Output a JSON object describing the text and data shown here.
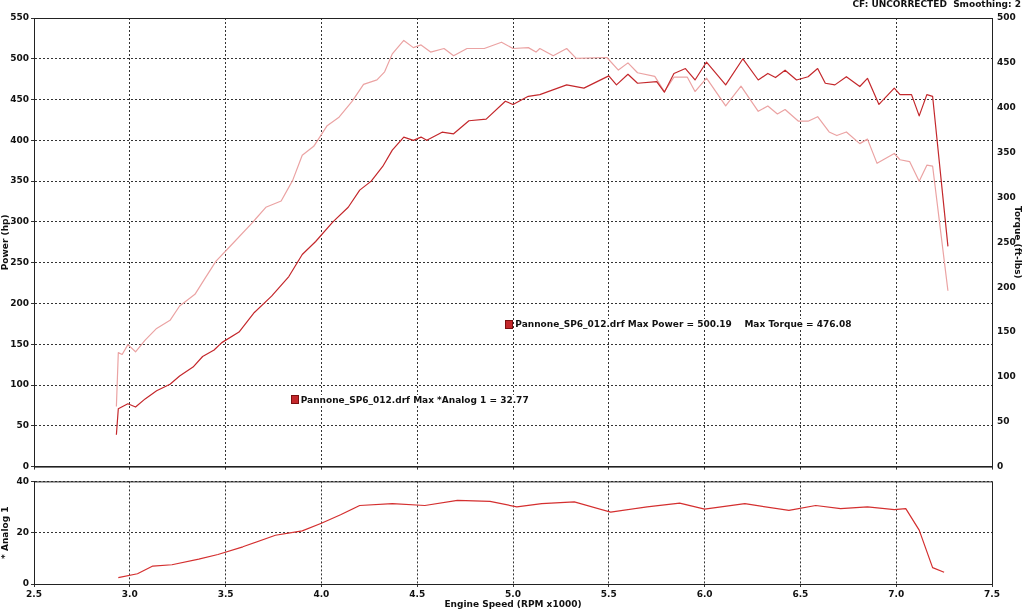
{
  "chart_data": [
    {
      "type": "line",
      "ylabel": "Power (hp)",
      "y2label": "Torque (ft-lbs)",
      "annotations": [
        "CF: UNCORRECTED  Smoothing: 2",
        "Pannone_SP6_012.drf Max Power = 500.19    Max Torque = 476.08",
        "Pannone_SP6_012.drf Max *Analog 1 = 32.77"
      ],
      "series": [
        {
          "color": "#c4282c",
          "x": [
            2.93,
            2.94,
            2.99,
            3.03,
            3.08,
            3.14,
            3.21,
            3.26,
            3.33,
            3.38,
            3.44,
            3.48,
            3.57,
            3.65,
            3.74,
            3.83,
            3.9,
            3.97,
            4.06,
            4.14,
            4.2,
            4.26,
            4.32,
            4.37,
            4.43,
            4.48,
            4.52,
            4.55,
            4.63,
            4.69,
            4.77,
            4.86,
            4.96,
            5.0,
            5.08,
            5.14,
            5.28,
            5.37,
            5.5,
            5.54,
            5.6,
            5.65,
            5.75,
            5.79,
            5.84,
            5.9,
            5.95,
            6.01,
            6.11,
            6.2,
            6.28,
            6.33,
            6.37,
            6.42,
            6.48,
            6.54,
            6.59,
            6.63,
            6.68,
            6.74,
            6.81,
            6.85,
            6.91,
            6.99,
            7.02,
            7.08,
            7.12,
            7.16,
            7.19,
            7.27
          ],
          "values": [
            39,
            71,
            77,
            73,
            83,
            93,
            101,
            111,
            122,
            135,
            143,
            152,
            165,
            189,
            209,
            233,
            260,
            276,
            300,
            318,
            339,
            350,
            368,
            388,
            404,
            400,
            404,
            400,
            410,
            408,
            424,
            426,
            448,
            444,
            454,
            456,
            468,
            464,
            479,
            468,
            481,
            470,
            472,
            459,
            482,
            488,
            474,
            496,
            468,
            500,
            474,
            482,
            477,
            486,
            474,
            478,
            488,
            470,
            468,
            478,
            466,
            476,
            444,
            464,
            456,
            456,
            430,
            456,
            454,
            270
          ]
        },
        {
          "color": "#eba3a3",
          "axis": "y2",
          "x": [
            2.93,
            2.94,
            2.96,
            2.99,
            3.03,
            3.08,
            3.14,
            3.21,
            3.26,
            3.34,
            3.39,
            3.45,
            3.53,
            3.64,
            3.71,
            3.79,
            3.85,
            3.9,
            3.96,
            4.03,
            4.09,
            4.16,
            4.22,
            4.29,
            4.33,
            4.37,
            4.43,
            4.48,
            4.52,
            4.57,
            4.64,
            4.69,
            4.76,
            4.85,
            4.94,
            5.0,
            5.08,
            5.12,
            5.14,
            5.21,
            5.28,
            5.33,
            5.49,
            5.55,
            5.6,
            5.65,
            5.74,
            5.79,
            5.84,
            5.91,
            5.95,
            6.01,
            6.11,
            6.19,
            6.28,
            6.33,
            6.38,
            6.42,
            6.49,
            6.54,
            6.59,
            6.65,
            6.69,
            6.74,
            6.81,
            6.85,
            6.9,
            6.99,
            7.02,
            7.07,
            7.12,
            7.16,
            7.19,
            7.27
          ],
          "values": [
            67,
            127,
            125,
            136,
            128,
            141,
            154,
            163,
            179,
            192,
            209,
            229,
            247,
            272,
            289,
            296,
            319,
            347,
            357,
            380,
            389,
            407,
            426,
            431,
            440,
            460,
            475,
            467,
            470,
            462,
            466,
            458,
            466,
            466,
            473,
            466,
            467,
            462,
            466,
            458,
            466,
            455,
            456,
            442,
            450,
            439,
            435,
            418,
            434,
            434,
            418,
            433,
            402,
            424,
            396,
            402,
            393,
            398,
            385,
            385,
            390,
            373,
            369,
            373,
            360,
            365,
            338,
            349,
            342,
            340,
            318,
            336,
            335,
            196
          ]
        }
      ],
      "xlim": [
        2.5,
        7.5
      ],
      "xticks": [
        {
          "value": 2.5,
          "label": null
        },
        {
          "value": 3,
          "label": null
        },
        {
          "value": 3.5,
          "label": null
        },
        {
          "value": 4,
          "label": null
        },
        {
          "value": 4.5,
          "label": null
        },
        {
          "value": 5,
          "label": null
        },
        {
          "value": 5.5,
          "label": null
        },
        {
          "value": 6,
          "label": null
        },
        {
          "value": 6.5,
          "label": null
        },
        {
          "value": 7,
          "label": null
        },
        {
          "value": 7.5,
          "label": null
        }
      ],
      "ylim": [
        0,
        550
      ],
      "yticks": [
        0,
        50,
        100,
        150,
        200,
        250,
        300,
        350,
        400,
        450,
        500,
        550
      ],
      "y2lim": [
        0,
        500
      ],
      "y2ticks": [
        0,
        50,
        100,
        150,
        200,
        250,
        300,
        350,
        400,
        450,
        500
      ],
      "tick_labels": "y",
      "grid": true,
      "marker": "none",
      "line_style": "solid",
      "legend": false
    },
    {
      "type": "line",
      "ylabel": "* Analog 1",
      "xlabel": "Engine Speed (RPM x1000)",
      "series": [
        {
          "color": "#d42f2f",
          "x": [
            2.94,
            3.04,
            3.12,
            3.22,
            3.36,
            3.46,
            3.59,
            3.76,
            3.9,
            4.0,
            4.1,
            4.2,
            4.37,
            4.54,
            4.71,
            4.88,
            5.02,
            5.15,
            5.32,
            5.51,
            5.7,
            5.87,
            6.0,
            6.21,
            6.44,
            6.58,
            6.71,
            6.85,
            6.99,
            7.05,
            7.12,
            7.19,
            7.25
          ],
          "values": [
            2.5,
            4,
            7,
            7.5,
            9.7,
            11.5,
            14.5,
            19,
            20.7,
            23.7,
            27,
            30.6,
            31.3,
            30.6,
            32.6,
            32.2,
            30.1,
            31.3,
            32,
            28,
            30.1,
            31.5,
            29.2,
            31.3,
            28.7,
            30.6,
            29.4,
            30.1,
            29,
            29.4,
            21,
            6.4,
            4.6
          ]
        }
      ],
      "xlim": [
        2.5,
        7.5
      ],
      "xticks": [
        {
          "value": 2.5,
          "label": "2.5"
        },
        {
          "value": 3,
          "label": "3.0"
        },
        {
          "value": 3.5,
          "label": "3.5"
        },
        {
          "value": 4,
          "label": "4.0"
        },
        {
          "value": 4.5,
          "label": "4.5"
        },
        {
          "value": 5,
          "label": "5.0"
        },
        {
          "value": 5.5,
          "label": "5.5"
        },
        {
          "value": 6,
          "label": "6.0"
        },
        {
          "value": 6.5,
          "label": "6.5"
        },
        {
          "value": 7,
          "label": "7.0"
        },
        {
          "value": 7.5,
          "label": "7.5"
        }
      ],
      "ylim": [
        0,
        40
      ],
      "yticks": [
        0,
        20,
        40
      ],
      "grid": true,
      "marker": "none",
      "line_style": "solid",
      "legend": false
    }
  ]
}
